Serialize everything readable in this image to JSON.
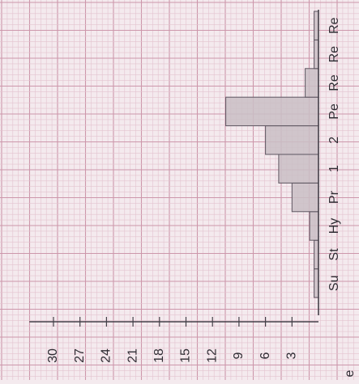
{
  "chart_data": {
    "type": "bar",
    "orientation": "vertical-bars-rotated-90",
    "categories": [
      "Su",
      "St",
      "Hy",
      "Pr",
      "1",
      "2",
      "Pe",
      "Re",
      "Re",
      "Re"
    ],
    "values": [
      0.5,
      0.5,
      1,
      3,
      4.5,
      6,
      10.5,
      1.5,
      0.5,
      0.5
    ],
    "y_ticks": [
      "3",
      "6",
      "9",
      "12",
      "15",
      "18",
      "21",
      "24",
      "27",
      "30"
    ],
    "ylim": [
      0,
      32
    ],
    "title": "",
    "xlabel": "",
    "ylabel": "",
    "edge_label": "e",
    "grid": true,
    "colors": {
      "background": "#f4eaee",
      "grid_minor": "#e3c3cf",
      "grid_major": "#cd97ab",
      "bar_fill": "#c9bec4",
      "bar_stroke": "#5d5560",
      "axis": "#444048",
      "text": "#2f2c33"
    }
  }
}
